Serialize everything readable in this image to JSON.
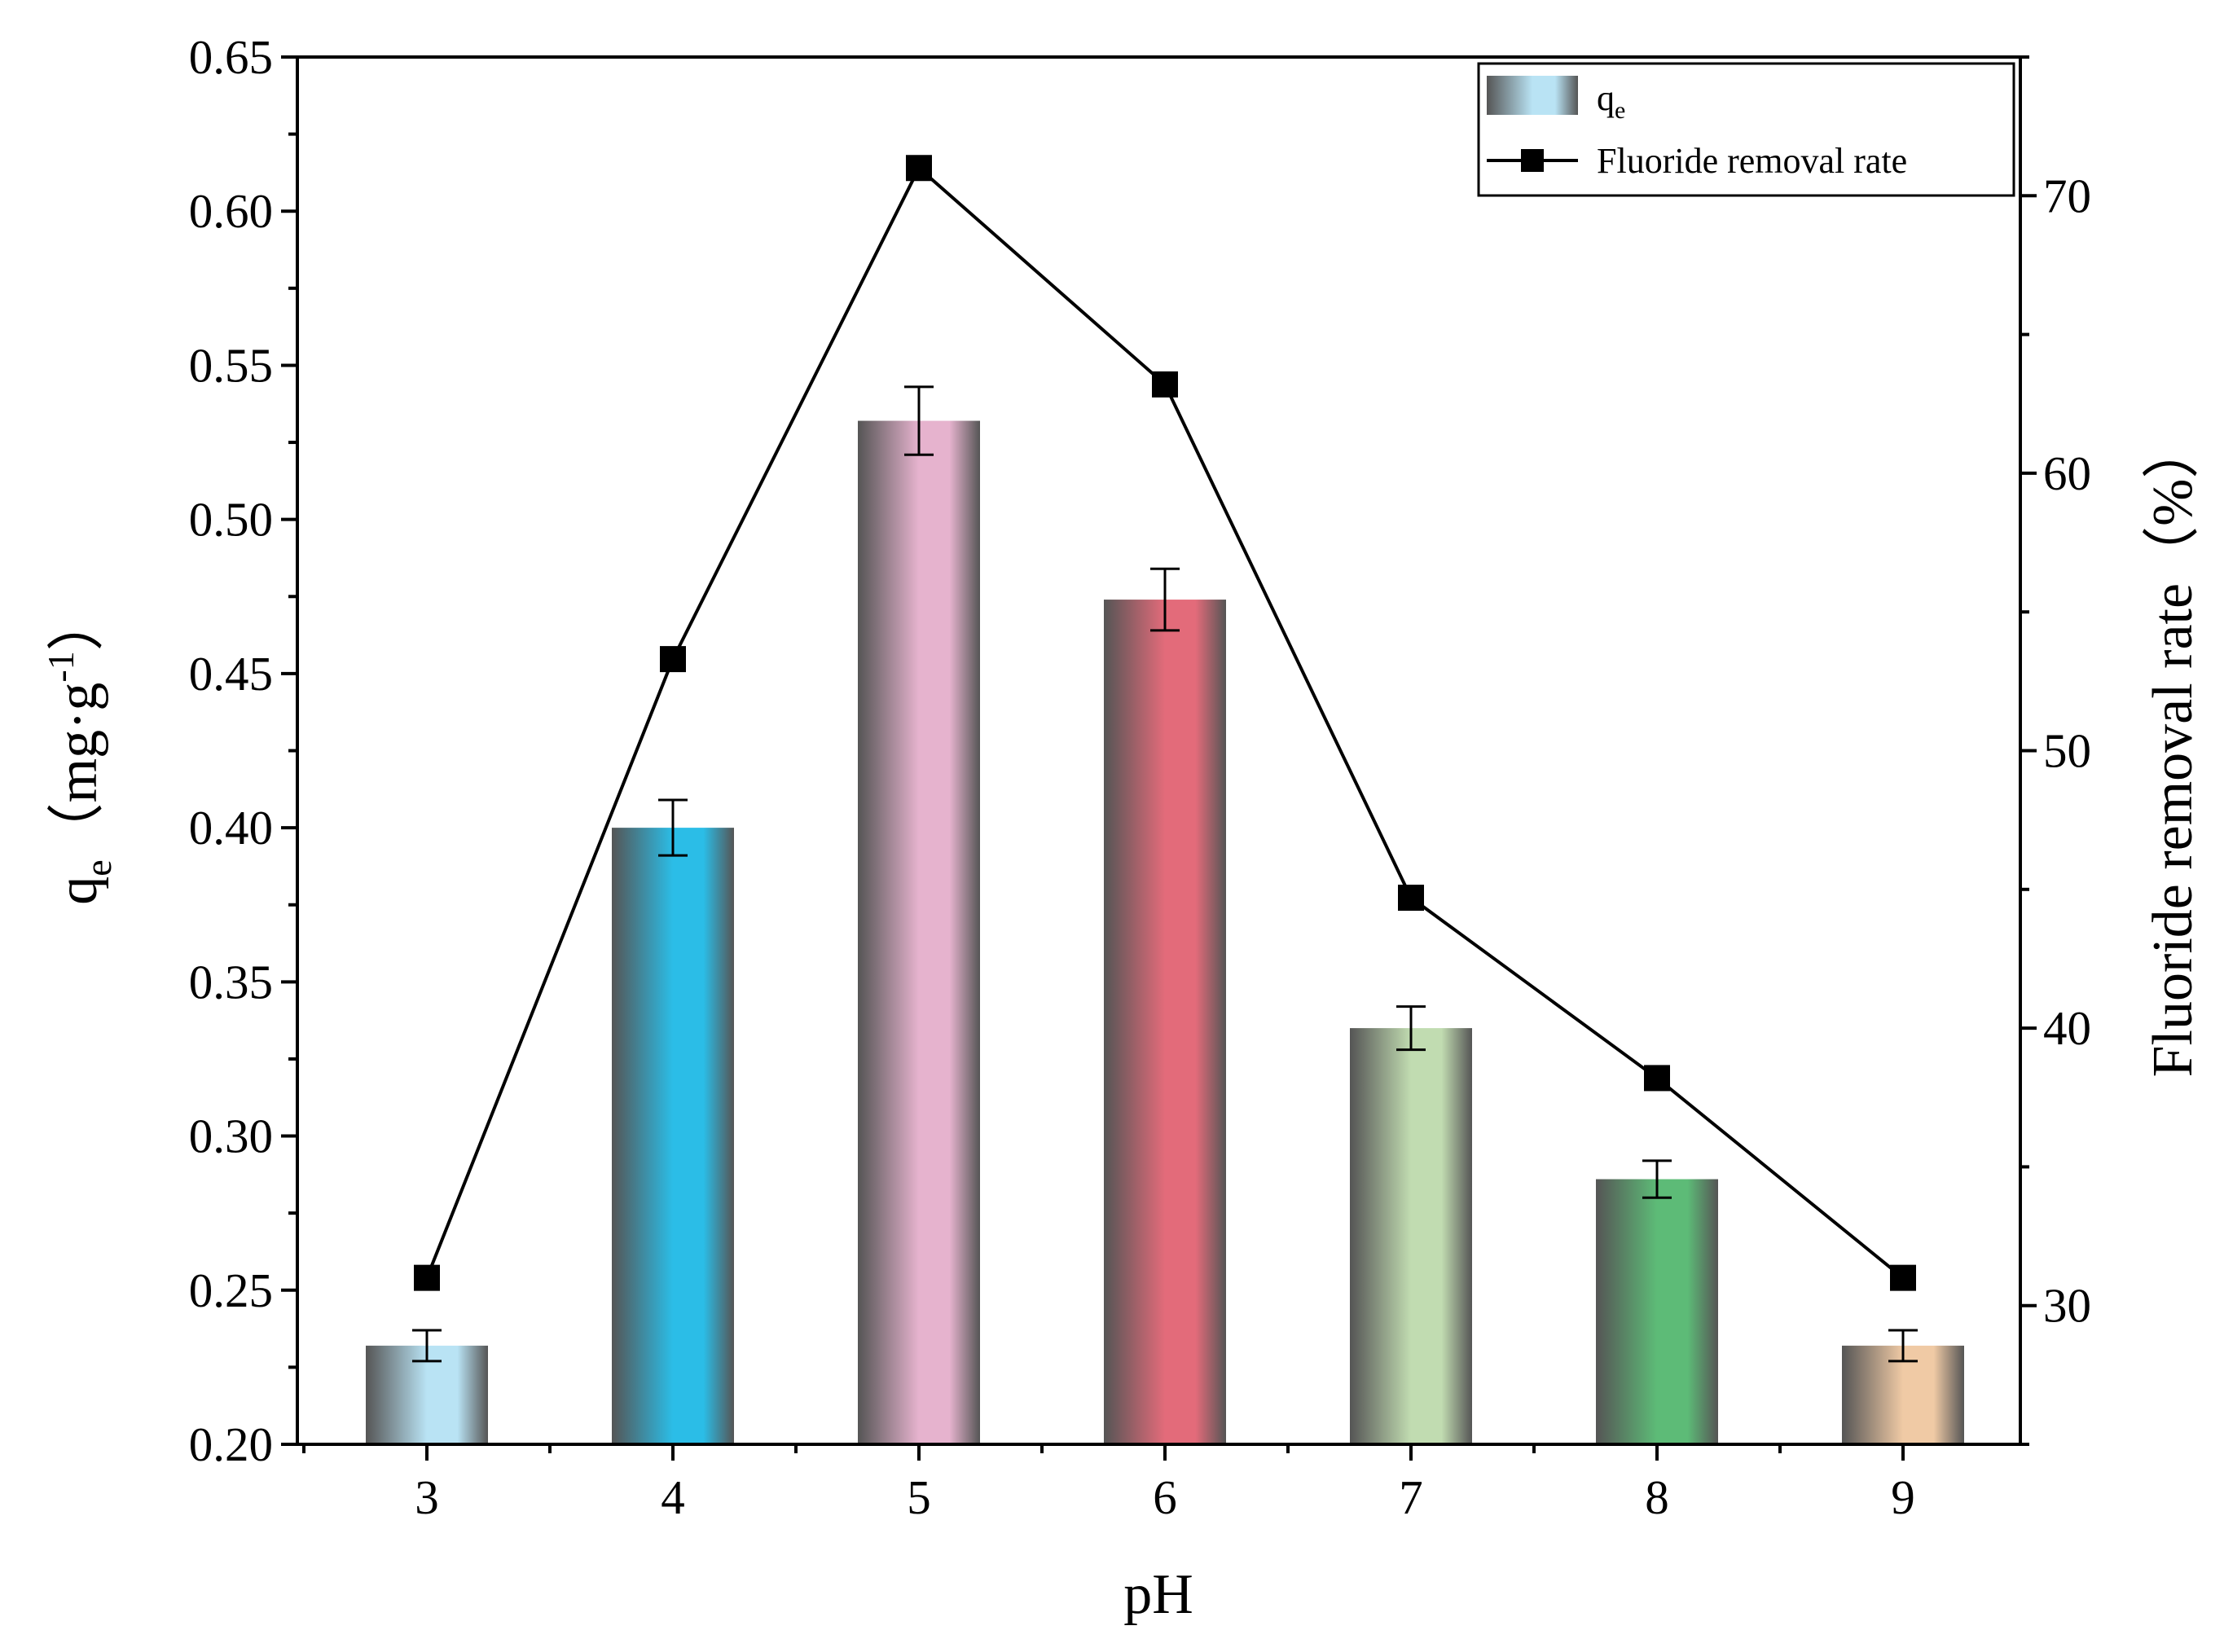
{
  "chart_data": {
    "type": "bar",
    "categories": [
      "3",
      "4",
      "5",
      "6",
      "7",
      "8",
      "9"
    ],
    "xlabel": "pH",
    "ylabel": {
      "main": "q",
      "sub": "e",
      "unit_open": "（mg·g",
      "unit_sup": "-1",
      "unit_close": "）"
    },
    "y2label": "Fluoride removal rate（%）",
    "ylim": [
      0.2,
      0.65
    ],
    "y2lim": [
      25,
      75
    ],
    "yticks": [
      "0.20",
      "0.25",
      "0.30",
      "0.35",
      "0.40",
      "0.45",
      "0.50",
      "0.55",
      "0.60",
      "0.65"
    ],
    "y2ticks": [
      "30",
      "40",
      "50",
      "60",
      "70"
    ],
    "series": [
      {
        "name": "qe",
        "type": "bar",
        "axis": "left",
        "values": [
          0.232,
          0.4,
          0.532,
          0.474,
          0.335,
          0.286,
          0.232
        ],
        "errors": [
          0.005,
          0.009,
          0.011,
          0.01,
          0.007,
          0.006,
          0.005
        ],
        "colors": [
          "#b9e3f4",
          "#2bbde7",
          "#e6b3ce",
          "#e36b7a",
          "#c1dcb1",
          "#5dbb77",
          "#f0caa5"
        ]
      },
      {
        "name": "Fluoride removal rate",
        "type": "line",
        "axis": "right",
        "values": [
          31.0,
          53.3,
          71.0,
          63.2,
          44.7,
          38.2,
          31.0
        ]
      }
    ],
    "legend": {
      "position": "top-right",
      "bar_label_main": "q",
      "bar_label_sub": "e",
      "line_label": "Fluoride removal rate"
    },
    "grid": false
  }
}
